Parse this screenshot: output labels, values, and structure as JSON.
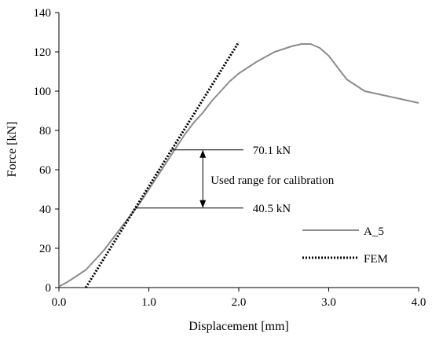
{
  "chart_data": {
    "type": "line",
    "title": "",
    "xlabel": "Displacement [mm]",
    "ylabel": "Force [kN]",
    "xlim": [
      0.0,
      4.0
    ],
    "ylim": [
      0,
      140
    ],
    "x_ticks": [
      "0.0",
      "1.0",
      "2.0",
      "3.0",
      "4.0"
    ],
    "y_ticks": [
      "0",
      "20",
      "40",
      "60",
      "80",
      "100",
      "120",
      "140"
    ],
    "grid": false,
    "legend_position": "bottom-right",
    "series": [
      {
        "name": "A_5",
        "style": "solid",
        "color": "#8c8c8c",
        "x": [
          0.0,
          0.1,
          0.2,
          0.3,
          0.4,
          0.5,
          0.6,
          0.7,
          0.8,
          0.9,
          1.0,
          1.1,
          1.2,
          1.3,
          1.4,
          1.5,
          1.6,
          1.7,
          1.8,
          1.9,
          2.0,
          2.2,
          2.4,
          2.6,
          2.7,
          2.8,
          2.9,
          3.0,
          3.2,
          3.4,
          3.6,
          3.8,
          4.0
        ],
        "y": [
          0.5,
          3,
          6,
          9,
          14,
          19,
          25,
          31,
          37,
          43,
          50,
          57,
          64,
          71,
          78,
          84,
          89,
          95,
          100,
          105,
          109,
          115,
          120,
          123,
          124,
          124,
          122,
          118,
          106,
          100,
          98,
          96,
          94
        ]
      },
      {
        "name": "FEM",
        "style": "dotted",
        "color": "#000000",
        "x": [
          0.3,
          2.0
        ],
        "y": [
          0,
          125
        ]
      }
    ],
    "annotations": {
      "upper_label": "70.1 kN",
      "lower_label": "40.5 kN",
      "range_label": "Used range for calibration",
      "upper_value": 70.1,
      "lower_value": 40.5,
      "arrow_x": 1.6,
      "upper_line_x": [
        1.25,
        2.05
      ],
      "lower_line_x": [
        0.85,
        2.05
      ]
    }
  }
}
